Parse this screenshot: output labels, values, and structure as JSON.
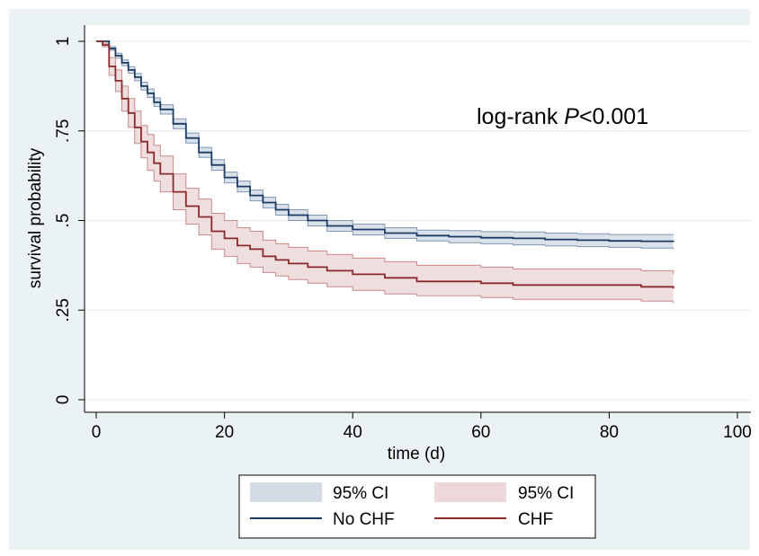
{
  "chart_data": {
    "type": "line",
    "subtype": "kaplan-meier",
    "title": "",
    "xlabel": "time (d)",
    "ylabel": "survival probability",
    "xlim": [
      0,
      100
    ],
    "ylim": [
      0,
      1
    ],
    "xticks": [
      0,
      20,
      40,
      60,
      80,
      100
    ],
    "xtick_labels": [
      "0",
      "20",
      "40",
      "60",
      "80",
      "100"
    ],
    "yticks": [
      0,
      0.25,
      0.5,
      0.75,
      1
    ],
    "ytick_labels": [
      "0",
      ".25",
      ".5",
      ".75",
      "1"
    ],
    "grid": true,
    "legend_position": "bottom",
    "annotation": {
      "text_prefix": "log-rank ",
      "text_italic": "P",
      "text_suffix": "<0.001"
    },
    "series": [
      {
        "name": "No CHF",
        "ci_label": "95% CI",
        "line_color": "#1a3a63",
        "ci_color": "#d3dce4",
        "ci_edge_color": "#7f98b5",
        "x": [
          0,
          1,
          2,
          3,
          4,
          5,
          6,
          7,
          8,
          9,
          10,
          12,
          14,
          16,
          18,
          20,
          22,
          24,
          26,
          28,
          30,
          33,
          36,
          40,
          45,
          50,
          55,
          60,
          65,
          70,
          75,
          80,
          85,
          90
        ],
        "y": [
          1.0,
          1.0,
          0.98,
          0.96,
          0.94,
          0.92,
          0.9,
          0.875,
          0.855,
          0.83,
          0.81,
          0.77,
          0.73,
          0.69,
          0.655,
          0.62,
          0.595,
          0.57,
          0.55,
          0.53,
          0.515,
          0.5,
          0.485,
          0.475,
          0.465,
          0.458,
          0.455,
          0.452,
          0.45,
          0.447,
          0.445,
          0.443,
          0.442,
          0.44
        ],
        "ci_lower": [
          1.0,
          1.0,
          0.975,
          0.953,
          0.932,
          0.911,
          0.89,
          0.864,
          0.843,
          0.818,
          0.797,
          0.756,
          0.716,
          0.676,
          0.64,
          0.605,
          0.58,
          0.555,
          0.535,
          0.515,
          0.5,
          0.485,
          0.47,
          0.46,
          0.45,
          0.443,
          0.438,
          0.435,
          0.432,
          0.429,
          0.427,
          0.425,
          0.423,
          0.42
        ],
        "ci_upper": [
          1.0,
          1.0,
          0.985,
          0.967,
          0.948,
          0.929,
          0.91,
          0.886,
          0.867,
          0.842,
          0.823,
          0.784,
          0.744,
          0.704,
          0.67,
          0.635,
          0.61,
          0.585,
          0.565,
          0.545,
          0.53,
          0.515,
          0.5,
          0.49,
          0.48,
          0.473,
          0.472,
          0.469,
          0.468,
          0.465,
          0.463,
          0.461,
          0.461,
          0.46
        ]
      },
      {
        "name": "CHF",
        "ci_label": "95% CI",
        "line_color": "#8b2a2a",
        "ci_color": "#ecd8d8",
        "ci_edge_color": "#c98a8a",
        "x": [
          0,
          1,
          2,
          3,
          4,
          5,
          6,
          7,
          8,
          9,
          10,
          12,
          14,
          16,
          18,
          20,
          22,
          24,
          26,
          28,
          30,
          33,
          36,
          40,
          45,
          50,
          55,
          60,
          65,
          70,
          75,
          80,
          85,
          90
        ],
        "y": [
          1.0,
          0.99,
          0.93,
          0.89,
          0.84,
          0.8,
          0.76,
          0.72,
          0.69,
          0.66,
          0.63,
          0.58,
          0.54,
          0.51,
          0.47,
          0.45,
          0.43,
          0.42,
          0.4,
          0.39,
          0.38,
          0.37,
          0.36,
          0.35,
          0.34,
          0.33,
          0.33,
          0.325,
          0.32,
          0.32,
          0.32,
          0.32,
          0.315,
          0.31
        ],
        "ci_lower": [
          1.0,
          0.985,
          0.905,
          0.86,
          0.805,
          0.76,
          0.715,
          0.675,
          0.64,
          0.61,
          0.58,
          0.53,
          0.49,
          0.46,
          0.42,
          0.4,
          0.38,
          0.37,
          0.355,
          0.345,
          0.335,
          0.325,
          0.315,
          0.305,
          0.295,
          0.29,
          0.29,
          0.285,
          0.28,
          0.28,
          0.28,
          0.28,
          0.275,
          0.27
        ],
        "ci_upper": [
          1.0,
          0.995,
          0.955,
          0.92,
          0.875,
          0.84,
          0.805,
          0.765,
          0.74,
          0.71,
          0.68,
          0.63,
          0.59,
          0.56,
          0.52,
          0.5,
          0.48,
          0.47,
          0.445,
          0.435,
          0.425,
          0.415,
          0.405,
          0.395,
          0.385,
          0.375,
          0.375,
          0.37,
          0.365,
          0.365,
          0.365,
          0.365,
          0.36,
          0.35
        ]
      }
    ]
  }
}
